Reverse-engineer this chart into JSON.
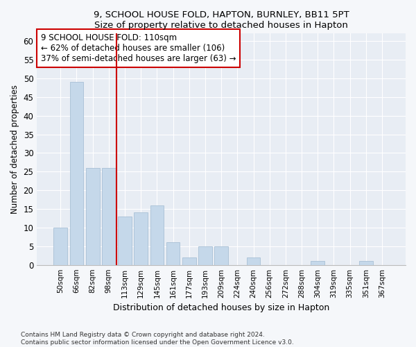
{
  "title1": "9, SCHOOL HOUSE FOLD, HAPTON, BURNLEY, BB11 5PT",
  "title2": "Size of property relative to detached houses in Hapton",
  "xlabel": "Distribution of detached houses by size in Hapton",
  "ylabel": "Number of detached properties",
  "categories": [
    "50sqm",
    "66sqm",
    "82sqm",
    "98sqm",
    "113sqm",
    "129sqm",
    "145sqm",
    "161sqm",
    "177sqm",
    "193sqm",
    "209sqm",
    "224sqm",
    "240sqm",
    "256sqm",
    "272sqm",
    "288sqm",
    "304sqm",
    "319sqm",
    "335sqm",
    "351sqm",
    "367sqm"
  ],
  "values": [
    10,
    49,
    26,
    26,
    13,
    14,
    16,
    6,
    2,
    5,
    5,
    0,
    2,
    0,
    0,
    0,
    1,
    0,
    0,
    1,
    0
  ],
  "bar_color": "#c5d8ea",
  "bar_edge_color": "#a8c0d6",
  "vline_x_index": 4,
  "vline_color": "#cc0000",
  "annotation_text": "9 SCHOOL HOUSE FOLD: 110sqm\n← 62% of detached houses are smaller (106)\n37% of semi-detached houses are larger (63) →",
  "annotation_box_color": "#ffffff",
  "annotation_box_edge": "#cc0000",
  "ylim": [
    0,
    62
  ],
  "yticks": [
    0,
    5,
    10,
    15,
    20,
    25,
    30,
    35,
    40,
    45,
    50,
    55,
    60
  ],
  "footer1": "Contains HM Land Registry data © Crown copyright and database right 2024.",
  "footer2": "Contains public sector information licensed under the Open Government Licence v3.0.",
  "bg_color": "#f5f7fa",
  "plot_bg_color": "#e8edf4"
}
